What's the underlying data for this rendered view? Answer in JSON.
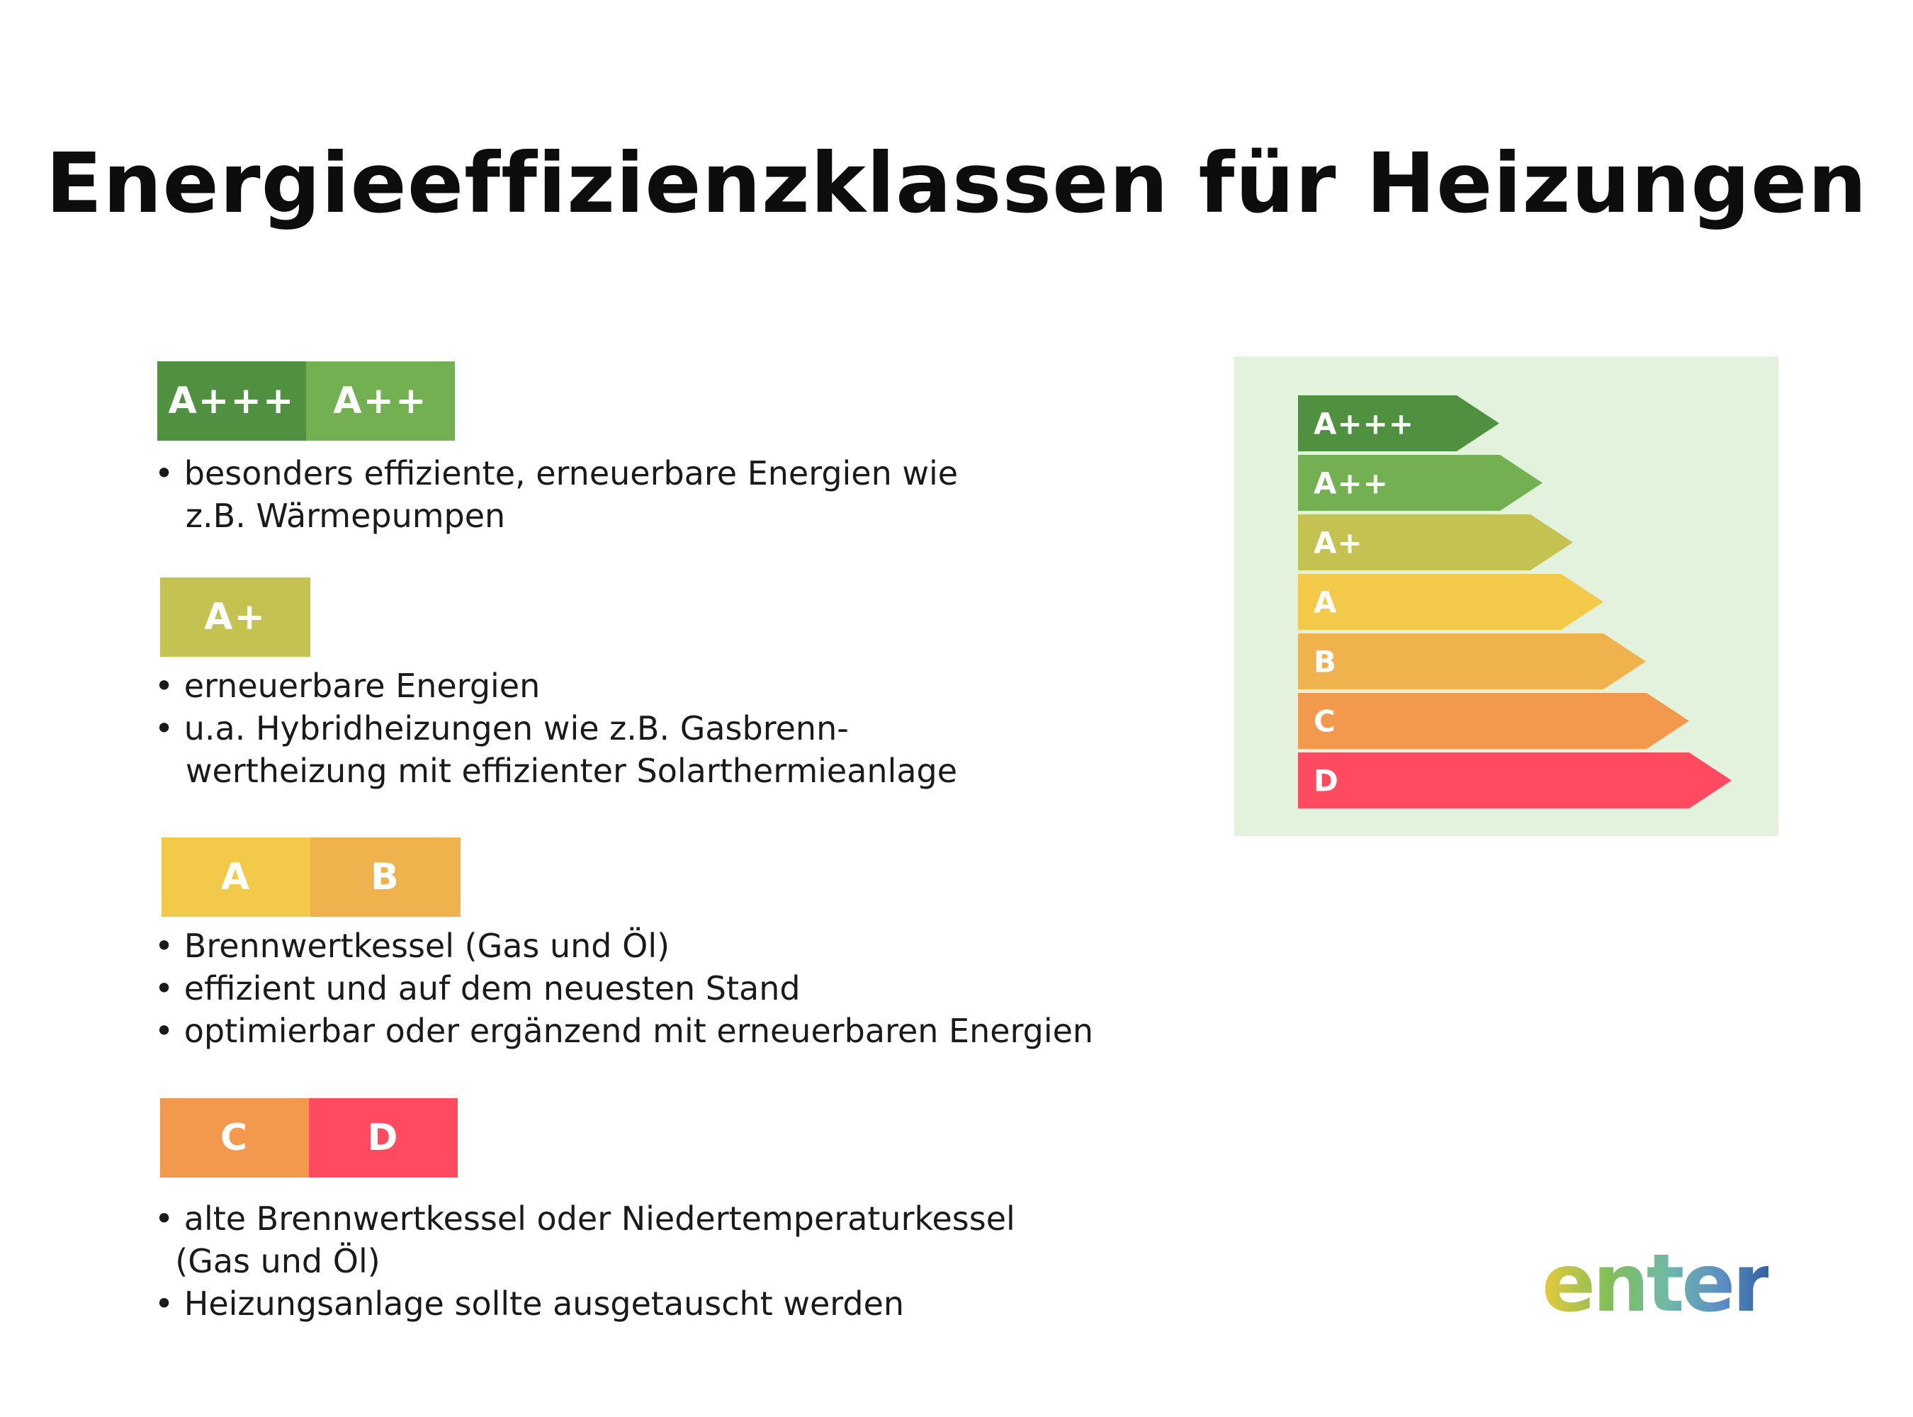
{
  "title": "Energieeffizienzklassen für Heizungen",
  "colors": {
    "A+++": "#4f9140",
    "A++": "#72b052",
    "A+": "#c4c251",
    "A": "#f3c94a",
    "B": "#f0b24d",
    "C": "#f3994d",
    "D": "#ff4a60",
    "scale_background": "#e3f2dc"
  },
  "sections": [
    {
      "badges": [
        "A+++",
        "A++"
      ],
      "lines": [
        "• besonders effiziente, erneuerbare Energien wie",
        "   z.B. Wärmepumpen"
      ]
    },
    {
      "badges": [
        "A+"
      ],
      "lines": [
        "• erneuerbare Energien",
        "• u.a. Hybridheizungen wie z.B. Gasbrenn-",
        "   wertheizung mit effizienter Solarthermieanlage"
      ]
    },
    {
      "badges": [
        "A",
        "B"
      ],
      "lines": [
        "• Brennwertkessel (Gas und Öl)",
        "• effizient und auf dem neuesten Stand",
        "• optimierbar oder ergänzend mit erneuerbaren Energien"
      ]
    },
    {
      "badges": [
        "C",
        "D"
      ],
      "lines": [
        "• alte Brennwertkessel oder Niedertemperaturkessel",
        "  (Gas und Öl)",
        "• Heizungsanlage sollte ausgetauscht werden"
      ]
    }
  ],
  "scale": [
    "A+++",
    "A++",
    "A+",
    "A",
    "B",
    "C",
    "D"
  ],
  "logo": {
    "text": "enter",
    "gradient": [
      "#e8c93a",
      "#7fbf5a",
      "#6fb8a8",
      "#5b8fc5",
      "#2f5f9e"
    ]
  }
}
